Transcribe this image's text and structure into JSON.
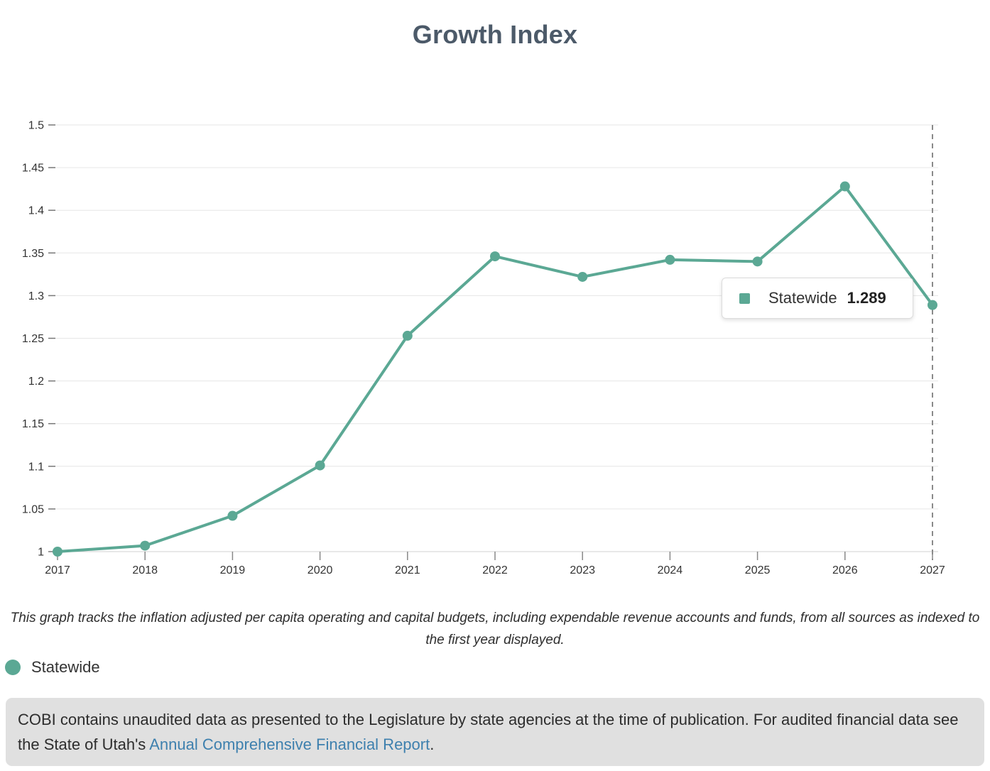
{
  "page": {
    "title": "Growth Index"
  },
  "chart_data": {
    "type": "line",
    "title": "Growth Index",
    "xlabel": "",
    "ylabel": "",
    "x": [
      2017,
      2018,
      2019,
      2020,
      2021,
      2022,
      2023,
      2024,
      2025,
      2026,
      2027
    ],
    "series": [
      {
        "name": "Statewide",
        "values": [
          1.0,
          1.007,
          1.042,
          1.101,
          1.253,
          1.346,
          1.322,
          1.342,
          1.34,
          1.428,
          1.289
        ]
      }
    ],
    "ylim": [
      1.0,
      1.5
    ],
    "ytick_step": 0.05,
    "yticks": [
      1,
      1.05,
      1.1,
      1.15,
      1.2,
      1.25,
      1.3,
      1.35,
      1.4,
      1.45,
      1.5
    ],
    "grid": true,
    "legend_position": "bottom-left",
    "series_color": "#5ba894",
    "forecast_divider_x": 2027
  },
  "tooltip": {
    "series_label": "Statewide",
    "value": "1.289"
  },
  "caption": "This graph tracks the inflation adjusted per capita operating and capital budgets, including expendable revenue accounts and funds, from all sources as indexed to the first year displayed.",
  "legend": {
    "items": [
      {
        "label": "Statewide",
        "color": "#5ba894"
      }
    ]
  },
  "footer": {
    "text_before_link": "COBI contains unaudited data as presented to the Legislature by state agencies at the time of publication. For audited financial data see the State of Utah's ",
    "link_text": "Annual Comprehensive Financial Report",
    "text_after_link": ".",
    "link_color": "#3e80ae"
  },
  "colors": {
    "accent_teal": "#5ba894",
    "title_text": "#4c5a69",
    "gridline": "#e6e6e6",
    "axis_line": "#d2d2d2",
    "dashed_divider": "#8a8a8a",
    "footer_background": "#e0e0e0"
  }
}
